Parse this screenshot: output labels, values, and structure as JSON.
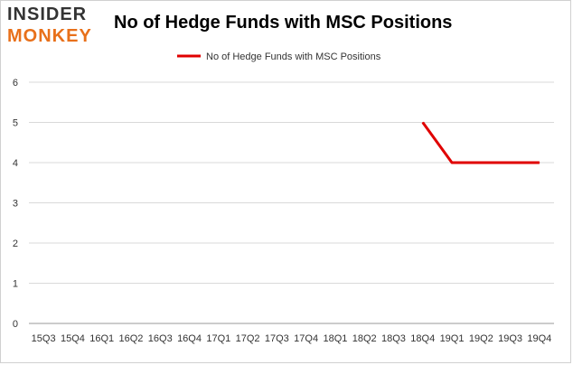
{
  "logo": {
    "line1": "INSIDER",
    "line2": "MONKEY",
    "color_primary": "#333333",
    "color_accent": "#e8701a"
  },
  "chart_data": {
    "type": "line",
    "title": "No of Hedge Funds with MSC Positions",
    "categories": [
      "15Q3",
      "15Q4",
      "16Q1",
      "16Q2",
      "16Q3",
      "16Q4",
      "17Q1",
      "17Q2",
      "17Q3",
      "17Q4",
      "18Q1",
      "18Q2",
      "18Q3",
      "18Q4",
      "19Q1",
      "19Q2",
      "19Q3",
      "19Q4"
    ],
    "series": [
      {
        "name": "No of Hedge Funds with MSC Positions",
        "color": "#e00000",
        "values": [
          null,
          null,
          null,
          null,
          null,
          null,
          null,
          null,
          null,
          null,
          null,
          null,
          null,
          5,
          4,
          4,
          4,
          4
        ]
      }
    ],
    "ylim": [
      0,
      6
    ],
    "yticks": [
      0,
      1,
      2,
      3,
      4,
      5,
      6
    ],
    "grid": true,
    "legend": "top-center",
    "xlabel": "",
    "ylabel": ""
  }
}
